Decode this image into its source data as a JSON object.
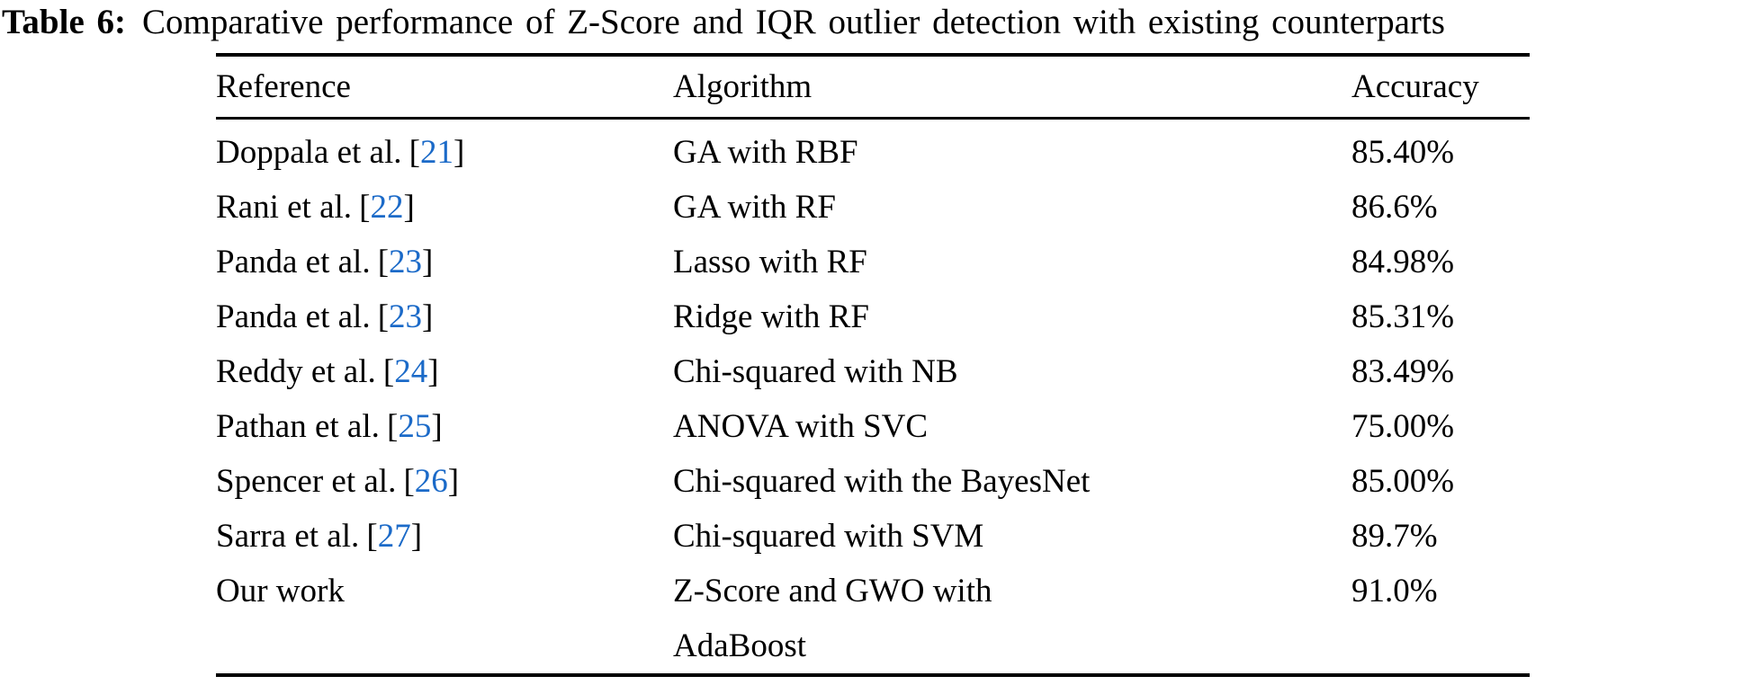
{
  "page": {
    "background": "#ffffff",
    "text_color": "#000000",
    "citation_color": "#1B6AC8"
  },
  "caption": {
    "label": "Table 6:",
    "text": "Comparative performance of Z-Score and IQR outlier detection with existing counterparts"
  },
  "table": {
    "columns": [
      "Reference",
      "Algorithm",
      "Accuracy"
    ],
    "citation_open": "[",
    "citation_close": "]",
    "rows": [
      {
        "reference": "Doppala et al.",
        "citation": "21",
        "algorithm": "GA with RBF",
        "accuracy": "85.40%"
      },
      {
        "reference": "Rani et al.",
        "citation": "22",
        "algorithm": "GA with RF",
        "accuracy": "86.6%"
      },
      {
        "reference": "Panda et al.",
        "citation": "23",
        "algorithm": "Lasso with RF",
        "accuracy": "84.98%"
      },
      {
        "reference": "Panda et al.",
        "citation": "23",
        "algorithm": "Ridge with RF",
        "accuracy": "85.31%"
      },
      {
        "reference": "Reddy et al.",
        "citation": "24",
        "algorithm": "Chi-squared with NB",
        "accuracy": "83.49%"
      },
      {
        "reference": "Pathan et al.",
        "citation": "25",
        "algorithm": "ANOVA with SVC",
        "accuracy": "75.00%"
      },
      {
        "reference": "Spencer et al.",
        "citation": "26",
        "algorithm": "Chi-squared with the BayesNet",
        "accuracy": "85.00%"
      },
      {
        "reference": "Sarra et al.",
        "citation": "27",
        "algorithm": "Chi-squared with SVM",
        "accuracy": "89.7%"
      },
      {
        "reference": "Our work",
        "algorithm": "Z-Score and GWO with",
        "algorithm_line2": "AdaBoost",
        "accuracy": "91.0%"
      }
    ]
  }
}
